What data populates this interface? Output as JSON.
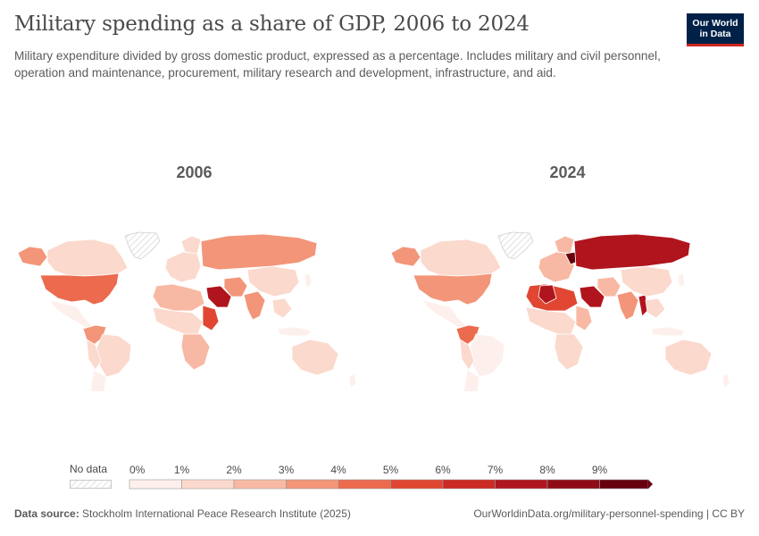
{
  "header": {
    "title": "Military spending as a share of GDP, 2006 to 2024",
    "subtitle": "Military expenditure divided by gross domestic product, expressed as a percentage. Includes military and civil personnel, operation and maintenance, procurement, military research and development, infrastructure, and aid.",
    "logo_line1": "Our World",
    "logo_line2": "in Data"
  },
  "maps": {
    "left_year": "2006",
    "right_year": "2024"
  },
  "legend": {
    "no_data_label": "No data",
    "ticks": [
      "0%",
      "1%",
      "2%",
      "3%",
      "4%",
      "5%",
      "6%",
      "7%",
      "8%",
      "9%"
    ],
    "colors": [
      "#fdf0ec",
      "#fbd9cd",
      "#f8b9a4",
      "#f39579",
      "#ec6a4d",
      "#e04631",
      "#cc2a24",
      "#b0151d",
      "#8f0b16",
      "#66000f"
    ],
    "no_data_color": "#e0e0e0"
  },
  "footer": {
    "source_label": "Data source:",
    "source": "Stockholm International Peace Research Institute (2025)",
    "link": "OurWorldinData.org/military-personnel-spending | CC BY"
  }
}
